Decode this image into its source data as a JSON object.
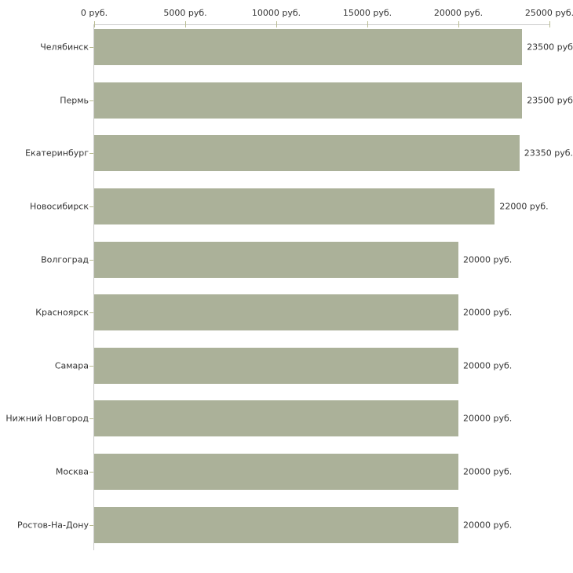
{
  "chart_data": {
    "type": "bar",
    "orientation": "horizontal",
    "title": "",
    "xlabel": "",
    "ylabel": "",
    "unit": "руб.",
    "xlim": [
      0,
      25000
    ],
    "grid": false,
    "legend": "none",
    "categories": [
      "Челябинск",
      "Пермь",
      "Екатеринбург",
      "Новосибирск",
      "Волгоград",
      "Красноярск",
      "Самара",
      "Нижний Новгород",
      "Москва",
      "Ростов-На-Дону"
    ],
    "values": [
      23500,
      23500,
      23350,
      22000,
      20000,
      20000,
      20000,
      20000,
      20000,
      20000
    ],
    "value_labels": [
      "23500 руб.",
      "23500 руб.",
      "23350 руб.",
      "22000 руб.",
      "20000 руб.",
      "20000 руб.",
      "20000 руб.",
      "20000 руб.",
      "20000 руб.",
      "20000 руб."
    ],
    "x_ticks": [
      {
        "value": 0,
        "label": "0 руб."
      },
      {
        "value": 5000,
        "label": "5000 руб."
      },
      {
        "value": 10000,
        "label": "10000 руб."
      },
      {
        "value": 15000,
        "label": "15000 руб."
      },
      {
        "value": 20000,
        "label": "20000 руб."
      },
      {
        "value": 25000,
        "label": "25000 руб."
      }
    ],
    "colors": {
      "bar": "#abb199",
      "axis_line": "#cbcbcb",
      "tick_mark": "#b8bb90",
      "text": "#333333",
      "background": "#ffffff"
    }
  }
}
